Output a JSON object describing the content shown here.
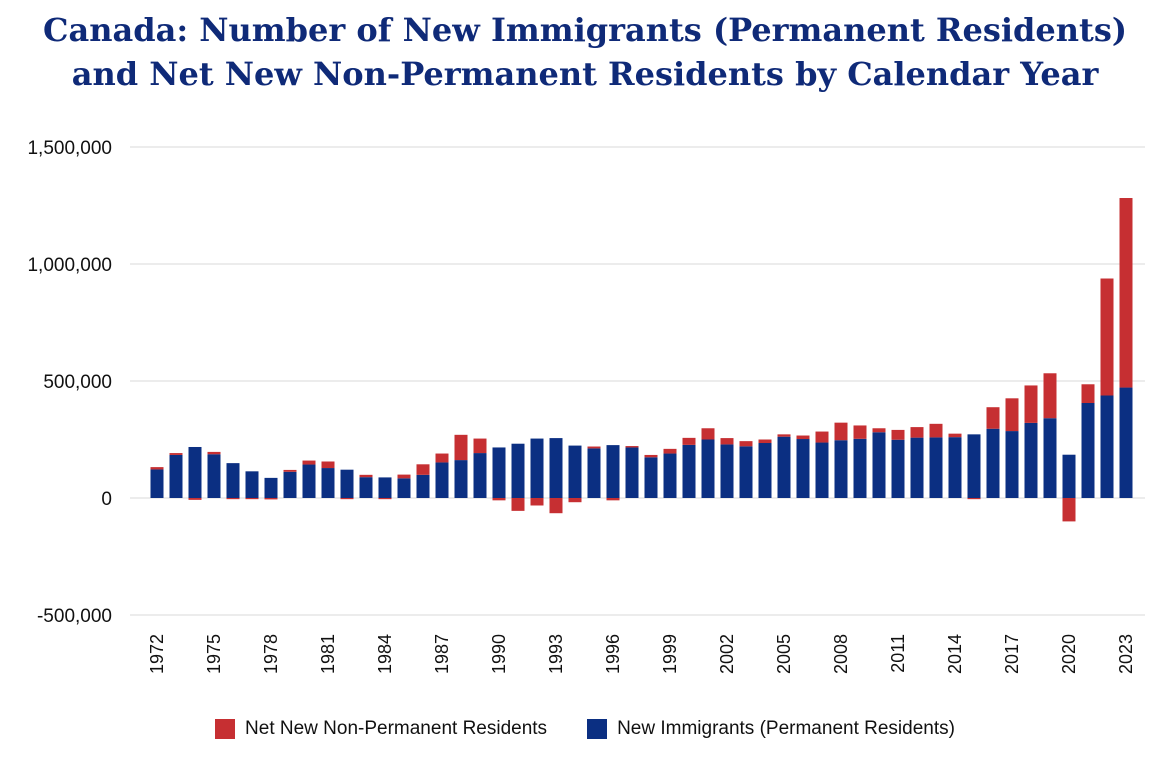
{
  "title_line1": "Canada: Number of New Immigrants (Permanent Residents)",
  "title_line2": "and Net New Non-Permanent Residents by Calendar Year",
  "colors": {
    "npr": "#c62f32",
    "pr": "#0b2f82",
    "grid": "#d9d9d9"
  },
  "chart_data": {
    "type": "bar",
    "stacked": true,
    "ylim": [
      -500000,
      1500000
    ],
    "yticks": [
      -500000,
      0,
      500000,
      1000000,
      1500000
    ],
    "ytick_labels": [
      "-500,000",
      "0",
      "500,000",
      "1,000,000",
      "1,500,000"
    ],
    "x": [
      1972,
      1973,
      1974,
      1975,
      1976,
      1977,
      1978,
      1979,
      1980,
      1981,
      1982,
      1983,
      1984,
      1985,
      1986,
      1987,
      1988,
      1989,
      1990,
      1991,
      1992,
      1993,
      1994,
      1995,
      1996,
      1997,
      1998,
      1999,
      2000,
      2001,
      2002,
      2003,
      2004,
      2005,
      2006,
      2007,
      2008,
      2009,
      2010,
      2011,
      2012,
      2013,
      2014,
      2015,
      2016,
      2017,
      2018,
      2019,
      2020,
      2021,
      2022,
      2023
    ],
    "xtick_labels": [
      "1972",
      "1975",
      "1978",
      "1981",
      "1984",
      "1987",
      "1990",
      "1993",
      "1996",
      "1999",
      "2002",
      "2005",
      "2008",
      "2011",
      "2014",
      "2017",
      "2020",
      "2023"
    ],
    "series": [
      {
        "name": "New Immigrants (Permanent Residents)",
        "values": [
          122000,
          184000,
          218000,
          187000,
          149000,
          114000,
          86000,
          112000,
          143000,
          128000,
          121000,
          89000,
          88000,
          84000,
          99000,
          152000,
          162000,
          192000,
          216000,
          232000,
          254000,
          256000,
          224000,
          212000,
          226000,
          216000,
          174000,
          190000,
          227000,
          250000,
          229000,
          221000,
          235000,
          262000,
          252000,
          237000,
          247000,
          253000,
          281000,
          249000,
          258000,
          259000,
          260000,
          272000,
          296000,
          286000,
          321000,
          341000,
          185000,
          406000,
          438000,
          472000
        ]
      },
      {
        "name": "Net New Non-Permanent Residents",
        "values": [
          10000,
          8000,
          -8000,
          10000,
          -5000,
          -5000,
          -6000,
          8000,
          17000,
          28000,
          -5000,
          10000,
          -5000,
          16000,
          45000,
          38000,
          108000,
          62000,
          -10000,
          -55000,
          -32000,
          -65000,
          -18000,
          8000,
          -10000,
          6000,
          10000,
          20000,
          30000,
          48000,
          27000,
          22000,
          15000,
          10000,
          15000,
          47000,
          75000,
          57000,
          17000,
          42000,
          45000,
          58000,
          15000,
          -5000,
          92000,
          140000,
          160000,
          192000,
          -100000,
          80000,
          500000,
          810000
        ]
      }
    ]
  },
  "legend": {
    "npr": "Net New Non-Permanent Residents",
    "pr": "New Immigrants (Permanent Residents)"
  }
}
